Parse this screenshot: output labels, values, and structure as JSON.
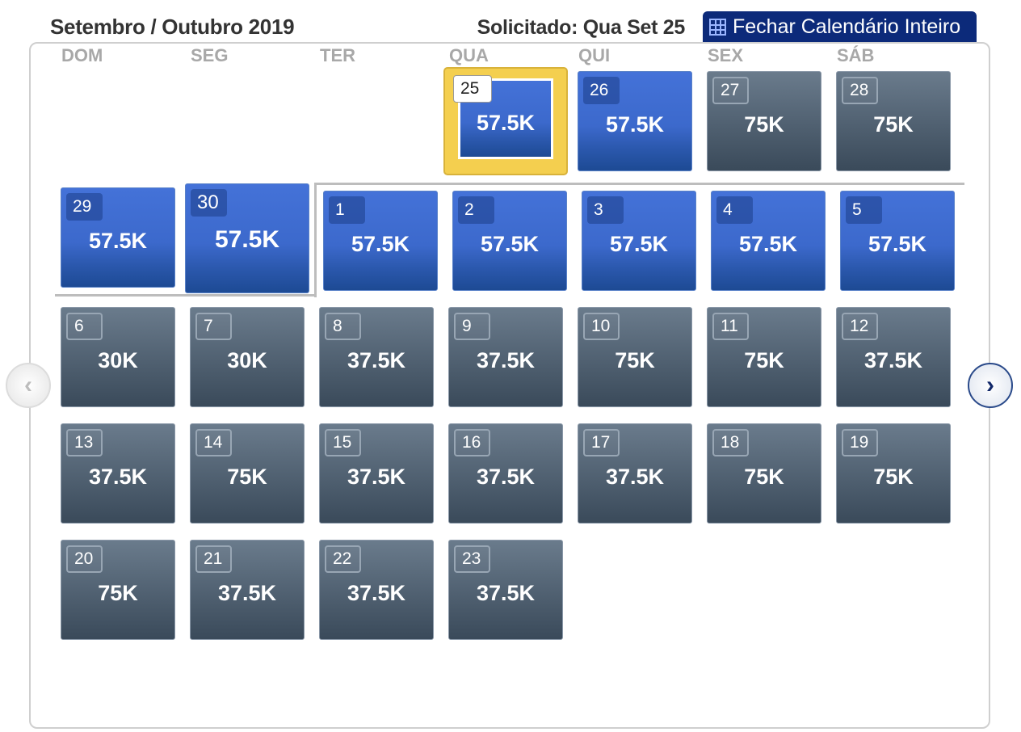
{
  "header": {
    "title": "Setembro / Outubro 2019",
    "requested": "Solicitado: Qua Set 25",
    "close_button_label": "Fechar Calendário Inteiro"
  },
  "weekdays": [
    "DOM",
    "SEG",
    "TER",
    "QUA",
    "QUI",
    "SEX",
    "SÁB"
  ],
  "days": [
    {
      "day": "25",
      "price": "57.5K",
      "style": "selected"
    },
    {
      "day": "26",
      "price": "57.5K",
      "style": "blue"
    },
    {
      "day": "27",
      "price": "75K",
      "style": "gray"
    },
    {
      "day": "28",
      "price": "75K",
      "style": "gray"
    },
    {
      "day": "29",
      "price": "57.5K",
      "style": "blue"
    },
    {
      "day": "30",
      "price": "57.5K",
      "style": "blue-focus"
    },
    {
      "day": "1",
      "price": "57.5K",
      "style": "blue"
    },
    {
      "day": "2",
      "price": "57.5K",
      "style": "blue"
    },
    {
      "day": "3",
      "price": "57.5K",
      "style": "blue"
    },
    {
      "day": "4",
      "price": "57.5K",
      "style": "blue"
    },
    {
      "day": "5",
      "price": "57.5K",
      "style": "blue"
    },
    {
      "day": "6",
      "price": "30K",
      "style": "gray"
    },
    {
      "day": "7",
      "price": "30K",
      "style": "gray"
    },
    {
      "day": "8",
      "price": "37.5K",
      "style": "gray"
    },
    {
      "day": "9",
      "price": "37.5K",
      "style": "gray"
    },
    {
      "day": "10",
      "price": "75K",
      "style": "gray"
    },
    {
      "day": "11",
      "price": "75K",
      "style": "gray"
    },
    {
      "day": "12",
      "price": "37.5K",
      "style": "gray"
    },
    {
      "day": "13",
      "price": "37.5K",
      "style": "gray"
    },
    {
      "day": "14",
      "price": "75K",
      "style": "gray"
    },
    {
      "day": "15",
      "price": "37.5K",
      "style": "gray"
    },
    {
      "day": "16",
      "price": "37.5K",
      "style": "gray"
    },
    {
      "day": "17",
      "price": "37.5K",
      "style": "gray"
    },
    {
      "day": "18",
      "price": "75K",
      "style": "gray"
    },
    {
      "day": "19",
      "price": "75K",
      "style": "gray"
    },
    {
      "day": "20",
      "price": "75K",
      "style": "gray"
    },
    {
      "day": "21",
      "price": "37.5K",
      "style": "gray"
    },
    {
      "day": "22",
      "price": "37.5K",
      "style": "gray"
    },
    {
      "day": "23",
      "price": "37.5K",
      "style": "gray"
    }
  ],
  "icons": {
    "close_button": "calendar-grid-icon",
    "prev": "chevron-left-icon",
    "next": "chevron-right-icon"
  },
  "nav": {
    "prev_glyph": "‹",
    "next_glyph": "›"
  },
  "colors": {
    "selected_highlight": "#f4cf4f",
    "available_blue": "#3c69cc",
    "unavailable_gray": "#4f5f70",
    "close_button_bg": "#0c2a7a"
  }
}
